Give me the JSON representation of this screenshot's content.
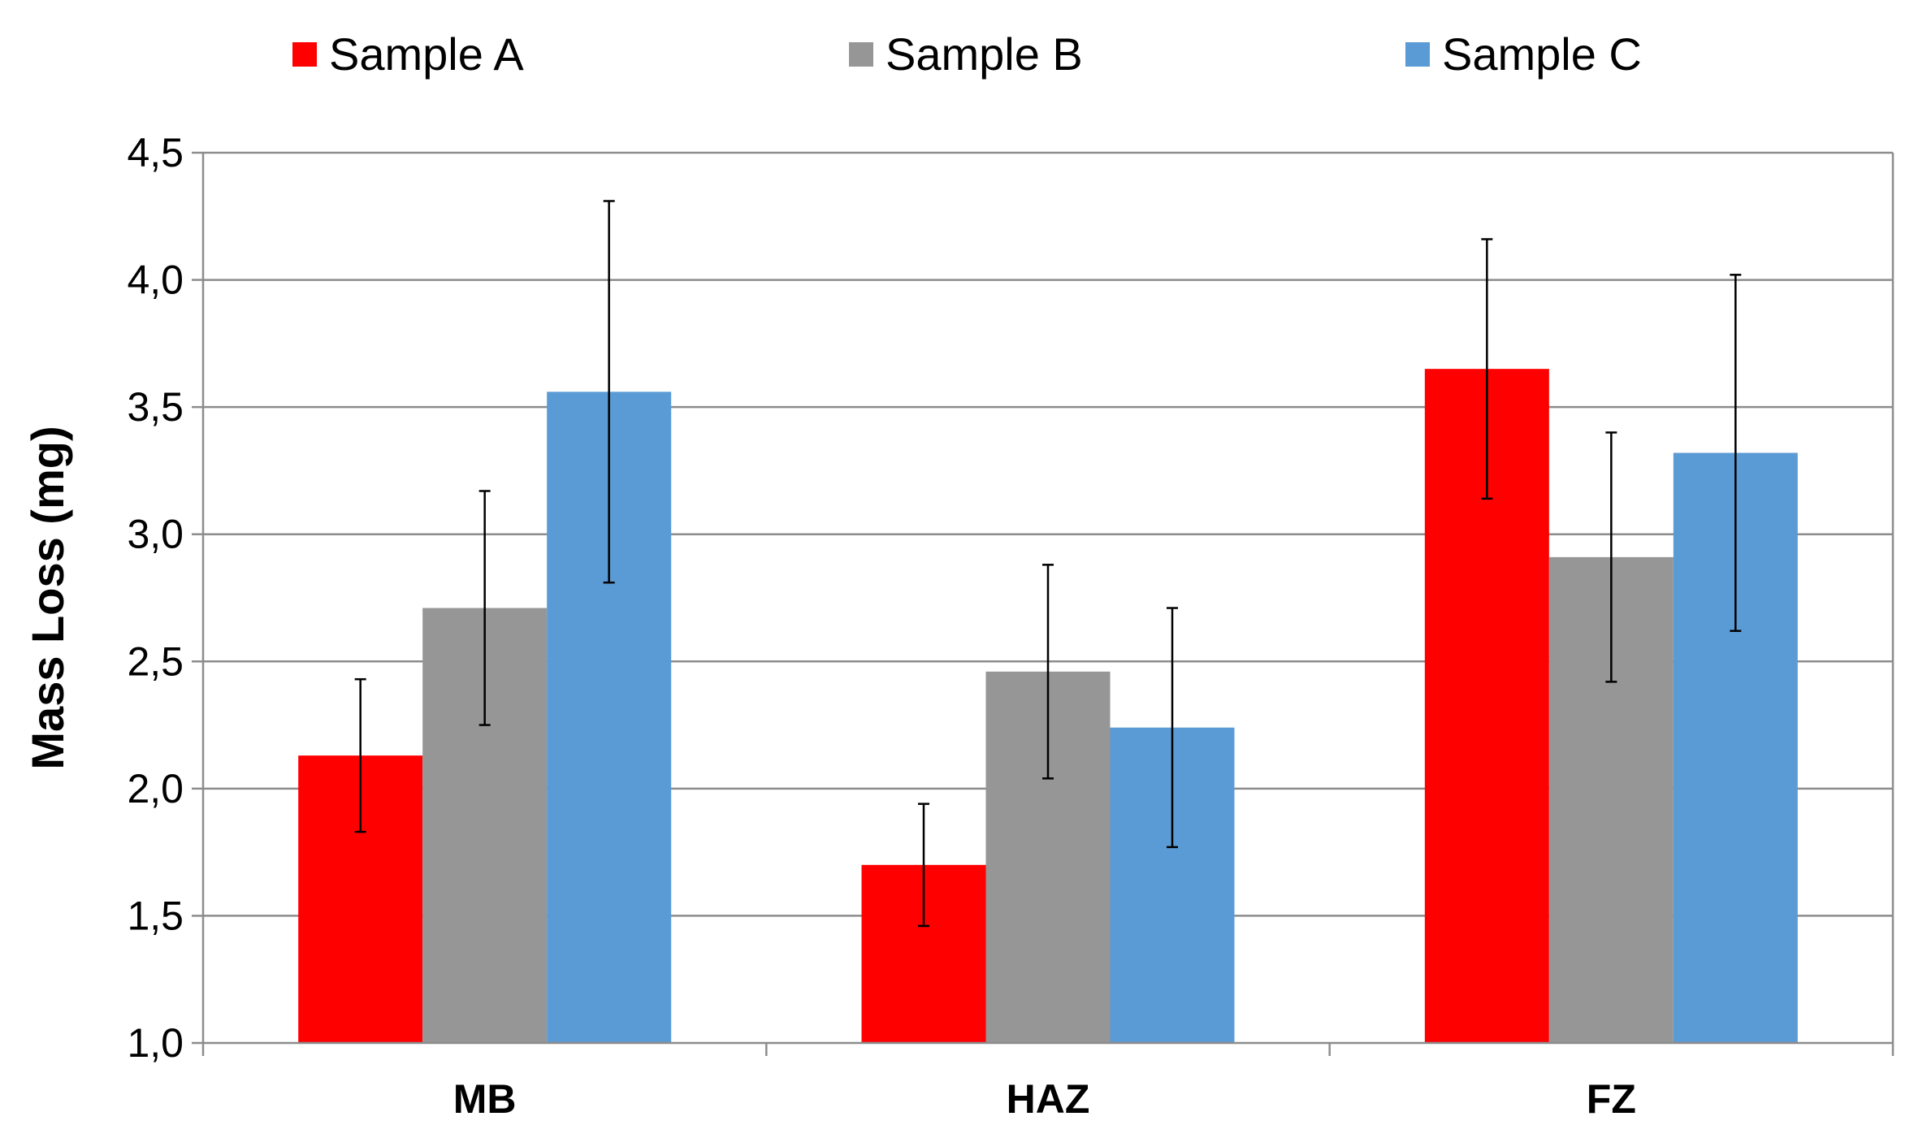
{
  "chart_data": {
    "type": "bar",
    "title": "",
    "xlabel": "",
    "ylabel": "Mass Loss (mg)",
    "ylim": [
      1.0,
      4.5
    ],
    "ytick_step": 0.5,
    "ytick_labels": [
      "1,0",
      "1,5",
      "2,0",
      "2,5",
      "3,0",
      "3,5",
      "4,0",
      "4,5"
    ],
    "grid": true,
    "legend_position": "top",
    "categories": [
      "MB",
      "HAZ",
      "FZ"
    ],
    "series": [
      {
        "name": "Sample A",
        "color": "#ff0000",
        "values": [
          2.13,
          1.7,
          3.65
        ],
        "errors": [
          0.3,
          0.24,
          0.51
        ]
      },
      {
        "name": "Sample B",
        "color": "#969696",
        "values": [
          2.71,
          2.46,
          2.91
        ],
        "errors": [
          0.46,
          0.42,
          0.49
        ]
      },
      {
        "name": "Sample C",
        "color": "#5b9bd5",
        "values": [
          3.56,
          2.24,
          3.32
        ],
        "errors": [
          0.75,
          0.47,
          0.7
        ]
      }
    ]
  }
}
